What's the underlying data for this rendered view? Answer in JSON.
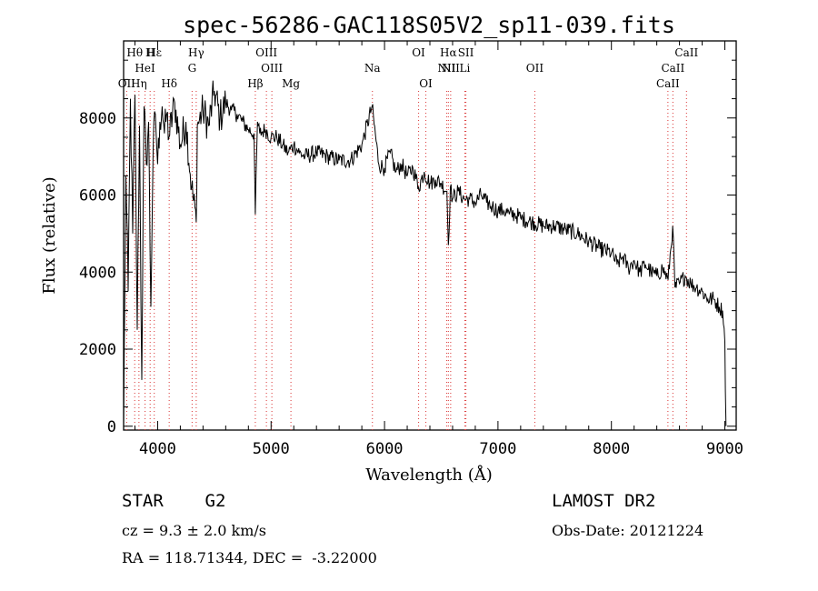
{
  "chart_data": {
    "type": "line",
    "title": "spec-56286-GAC118S05V2_sp11-039.fits",
    "xlabel": "Wavelength (Å)",
    "ylabel": "Flux (relative)",
    "xlim": [
      3700,
      9100
    ],
    "ylim": [
      -100,
      10000
    ],
    "x_ticks": [
      4000,
      5000,
      6000,
      7000,
      8000,
      9000
    ],
    "y_ticks": [
      0,
      2000,
      4000,
      6000,
      8000
    ],
    "grid": false,
    "series": [
      {
        "x": [
          3700,
          3720,
          3740,
          3760,
          3780,
          3800,
          3820,
          3840,
          3860,
          3880,
          3900,
          3920,
          3940,
          3960,
          3980,
          4000,
          4020,
          4040,
          4060,
          4080,
          4100,
          4150,
          4200,
          4250,
          4300,
          4340,
          4350,
          4400,
          4450,
          4500,
          4550,
          4600,
          4650,
          4700,
          4750,
          4800,
          4850,
          4861,
          4880,
          4900,
          4950,
          5000,
          5050,
          5100,
          5150,
          5200,
          5250,
          5300,
          5400,
          5500,
          5600,
          5700,
          5800,
          5890,
          5950,
          6000,
          6050,
          6100,
          6150,
          6200,
          6250,
          6300,
          6350,
          6400,
          6450,
          6500,
          6550,
          6563,
          6580,
          6600,
          6650,
          6700,
          6750,
          6800,
          6850,
          6900,
          6950,
          7000,
          7050,
          7100,
          7150,
          7200,
          7300,
          7400,
          7500,
          7600,
          7700,
          7800,
          7900,
          8000,
          8050,
          8100,
          8150,
          8200,
          8250,
          8300,
          8350,
          8400,
          8450,
          8500,
          8540,
          8560,
          8600,
          8650,
          8700,
          8750,
          8800,
          8850,
          8900,
          8950,
          8980,
          9000,
          9010
        ],
        "y": [
          0,
          6500,
          3500,
          8500,
          5000,
          8600,
          2500,
          7800,
          1200,
          8300,
          6800,
          7900,
          3100,
          7200,
          8100,
          6800,
          7900,
          8300,
          7600,
          8100,
          7500,
          8400,
          7300,
          7900,
          6200,
          5300,
          7800,
          8200,
          7800,
          8700,
          8000,
          8400,
          8200,
          8100,
          7900,
          7700,
          7600,
          5500,
          7900,
          7600,
          7700,
          7500,
          7500,
          7300,
          7100,
          7300,
          7100,
          7000,
          7100,
          7000,
          6900,
          6900,
          7300,
          8300,
          6800,
          6700,
          7100,
          6600,
          6800,
          6500,
          6700,
          6200,
          6600,
          6300,
          6400,
          6300,
          6100,
          4700,
          6200,
          5900,
          6100,
          5900,
          5900,
          5800,
          6000,
          5800,
          5700,
          5600,
          5600,
          5500,
          5500,
          5400,
          5300,
          5200,
          5200,
          5100,
          5000,
          4800,
          4600,
          4500,
          4200,
          4400,
          4100,
          4300,
          4000,
          4200,
          4000,
          3900,
          4100,
          3800,
          5200,
          3600,
          3700,
          3900,
          3700,
          3600,
          3500,
          3300,
          3300,
          3100,
          3000,
          2200,
          0
        ]
      }
    ],
    "spectral_lines": [
      {
        "label": "Hβ",
        "wl": 4861,
        "row": 3
      },
      {
        "label": "OIII",
        "wl": 4959,
        "row": 0
      },
      {
        "label": "OIII",
        "wl": 5007,
        "row": 1
      },
      {
        "label": "Mg",
        "wl": 5175,
        "row": 3
      },
      {
        "label": "Na",
        "wl": 5893,
        "row": 2
      },
      {
        "label": "OI",
        "wl": 6300,
        "row": 0
      },
      {
        "label": "OI",
        "wl": 6364,
        "row": 3
      },
      {
        "label": "Hα",
        "wl": 6563,
        "row": 0
      },
      {
        "label": "NII",
        "wl": 6548,
        "row": 1
      },
      {
        "label": "NII",
        "wl": 6583,
        "row": 2
      },
      {
        "label": "SII",
        "wl": 6717,
        "row": 0
      },
      {
        "label": "Li",
        "wl": 6708,
        "row": 1
      },
      {
        "label": "OII",
        "wl": 7325,
        "row": 1
      },
      {
        "label": "CaII",
        "wl": 8498,
        "row": 3
      },
      {
        "label": "CaII",
        "wl": 8542,
        "row": 2
      },
      {
        "label": "CaII",
        "wl": 8662,
        "row": 0
      },
      {
        "label": "Hδ",
        "wl": 4102,
        "row": 3
      },
      {
        "label": "Hγ",
        "wl": 4340,
        "row": 0
      },
      {
        "label": "G",
        "wl": 4304,
        "row": 1
      },
      {
        "label": "Hη",
        "wl": 3835,
        "row": 3
      },
      {
        "label": "OII",
        "wl": 3727,
        "row": 3
      },
      {
        "label": "HeI",
        "wl": 3889,
        "row": 1
      },
      {
        "label": "Hε",
        "wl": 3970,
        "row": 0
      },
      {
        "label": "Hθ",
        "wl": 3798,
        "row": 0
      },
      {
        "label": "H",
        "wl": 3934,
        "row": 0
      }
    ]
  },
  "info": {
    "class": "STAR    G2",
    "survey": "LAMOST DR2",
    "cz": "cz = 9.3 ± 2.0 km/s",
    "obs_date": "Obs-Date: 20121224",
    "coords": "RA = 118.71344, DEC =  -3.22000"
  }
}
